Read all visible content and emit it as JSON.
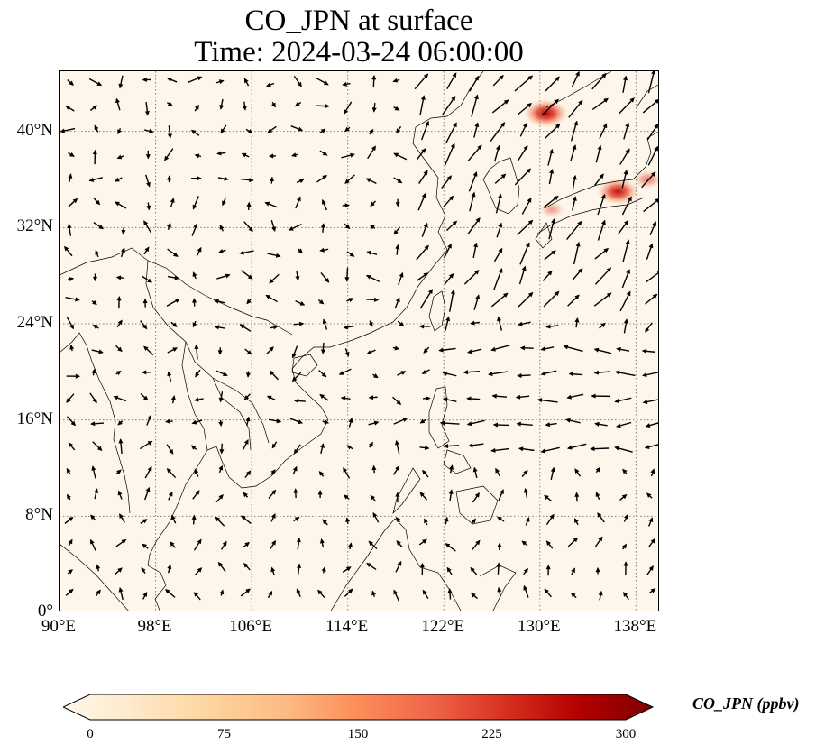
{
  "title": {
    "line1": "CO_JPN at surface",
    "line2": "Time: 2024-03-24 06:00:00"
  },
  "map": {
    "extent": {
      "lon_min": 90,
      "lon_max": 140,
      "lat_min": 0,
      "lat_max": 45
    },
    "gridlines": true,
    "lat_labels": [
      "40°N",
      "32°N",
      "24°N",
      "16°N",
      "8°N",
      "0°"
    ],
    "lat_values": [
      40,
      32,
      24,
      16,
      8,
      0
    ],
    "lon_labels": [
      "90°E",
      "98°E",
      "106°E",
      "114°E",
      "122°E",
      "130°E",
      "138°E"
    ],
    "lon_values": [
      90,
      98,
      106,
      114,
      122,
      130,
      138
    ],
    "colors": {
      "background": "#fef6ea",
      "coast": "#000000",
      "grid": "#808080",
      "arrow": "#000000"
    },
    "hotspots": [
      {
        "lon": 130.5,
        "lat": 41.5,
        "value": 250
      },
      {
        "lon": 136.5,
        "lat": 35.0,
        "value": 230
      },
      {
        "lon": 139.0,
        "lat": 36.0,
        "value": 120
      },
      {
        "lon": 131.0,
        "lat": 33.5,
        "value": 90
      }
    ]
  },
  "colorbar": {
    "label": "CO_JPN (ppbv)",
    "min": 0,
    "max": 300,
    "ticks": [
      "0",
      "75",
      "150",
      "225",
      "300"
    ],
    "tick_values": [
      0,
      75,
      150,
      225,
      300
    ],
    "colormap": "OrRd",
    "colors": [
      "#fff7ec",
      "#fee8c8",
      "#fdd49e",
      "#fdbb84",
      "#fc8d59",
      "#ef6548",
      "#d7301f",
      "#b30000",
      "#7f0000"
    ]
  }
}
